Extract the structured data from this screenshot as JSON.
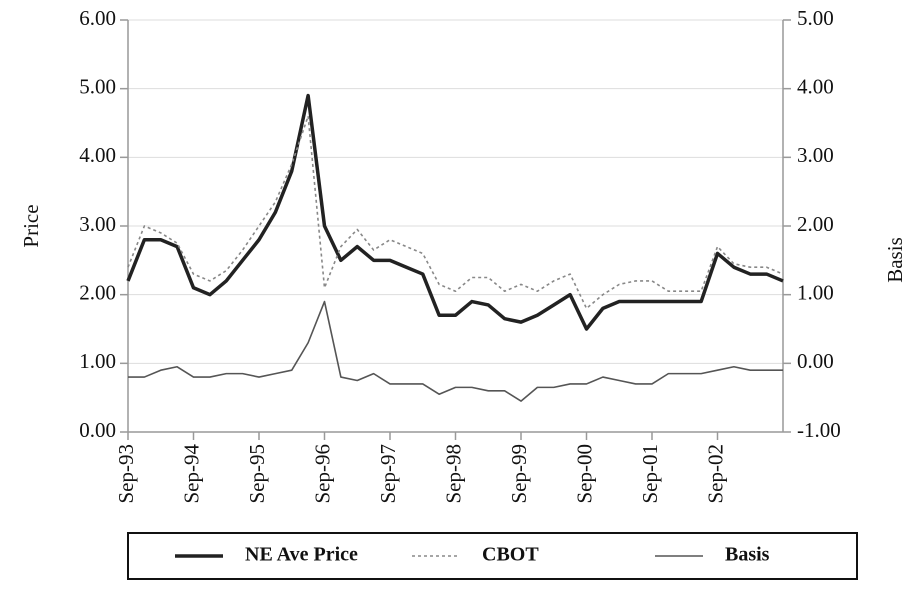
{
  "chart_data": {
    "type": "line",
    "y_label": "Price",
    "y2_label": "Basis",
    "categories": [
      "Sep-93",
      null,
      null,
      null,
      "Sep-94",
      null,
      null,
      null,
      "Sep-95",
      null,
      null,
      null,
      "Sep-96",
      null,
      null,
      null,
      "Sep-97",
      null,
      null,
      null,
      "Sep-98",
      null,
      null,
      null,
      "Sep-99",
      null,
      null,
      null,
      "Sep-00",
      null,
      null,
      null,
      "Sep-01",
      null,
      null,
      null,
      "Sep-02",
      null,
      null,
      null,
      null
    ],
    "series": [
      {
        "name": "NE Ave Price",
        "color": "#222222",
        "style": "solid",
        "values": [
          2.2,
          2.8,
          2.8,
          2.7,
          2.1,
          2.0,
          2.2,
          2.5,
          2.8,
          3.2,
          3.8,
          4.9,
          3.0,
          2.5,
          2.7,
          2.5,
          2.5,
          2.4,
          2.3,
          1.7,
          1.7,
          1.9,
          1.85,
          1.65,
          1.6,
          1.7,
          1.85,
          2.0,
          1.5,
          1.8,
          1.9,
          1.9,
          1.9,
          1.9,
          1.9,
          1.9,
          2.6,
          2.4,
          2.3,
          2.3,
          2.2
        ]
      },
      {
        "name": "CBOT",
        "color": "#888888",
        "style": "dotted",
        "values": [
          2.4,
          3.0,
          2.9,
          2.75,
          2.3,
          2.2,
          2.35,
          2.65,
          3.0,
          3.35,
          3.9,
          4.6,
          2.1,
          2.7,
          2.95,
          2.65,
          2.8,
          2.7,
          2.6,
          2.15,
          2.05,
          2.25,
          2.25,
          2.05,
          2.15,
          2.05,
          2.2,
          2.3,
          1.8,
          2.0,
          2.15,
          2.2,
          2.2,
          2.05,
          2.05,
          2.05,
          2.7,
          2.45,
          2.4,
          2.4,
          2.3
        ]
      },
      {
        "name": "Basis",
        "color": "#555555",
        "style": "solid",
        "axis": "y2",
        "values": [
          -0.2,
          -0.2,
          -0.1,
          -0.05,
          -0.2,
          -0.2,
          -0.15,
          -0.15,
          -0.2,
          -0.15,
          -0.1,
          0.3,
          0.9,
          -0.2,
          -0.25,
          -0.15,
          -0.3,
          -0.3,
          -0.3,
          -0.45,
          -0.35,
          -0.35,
          -0.4,
          -0.4,
          -0.55,
          -0.35,
          -0.35,
          -0.3,
          -0.3,
          -0.2,
          -0.25,
          -0.3,
          -0.3,
          -0.15,
          -0.15,
          -0.15,
          -0.1,
          -0.05,
          -0.1,
          -0.1,
          -0.1
        ]
      }
    ],
    "ylim": [
      0,
      6
    ],
    "yticks": [
      {
        "value": 0,
        "label": "0.00"
      },
      {
        "value": 1,
        "label": "1.00"
      },
      {
        "value": 2,
        "label": "2.00"
      },
      {
        "value": 3,
        "label": "3.00"
      },
      {
        "value": 4,
        "label": "4.00"
      },
      {
        "value": 5,
        "label": "5.00"
      },
      {
        "value": 6,
        "label": "6.00"
      }
    ],
    "y2lim": [
      -1,
      5
    ],
    "y2ticks": [
      {
        "value": -1,
        "label": "-1.00"
      },
      {
        "value": 0,
        "label": "0.00"
      },
      {
        "value": 1,
        "label": "1.00"
      },
      {
        "value": 2,
        "label": "2.00"
      },
      {
        "value": 3,
        "label": "3.00"
      },
      {
        "value": 4,
        "label": "4.00"
      },
      {
        "value": 5,
        "label": "5.00"
      }
    ],
    "grid": true,
    "legend": "bottom"
  }
}
